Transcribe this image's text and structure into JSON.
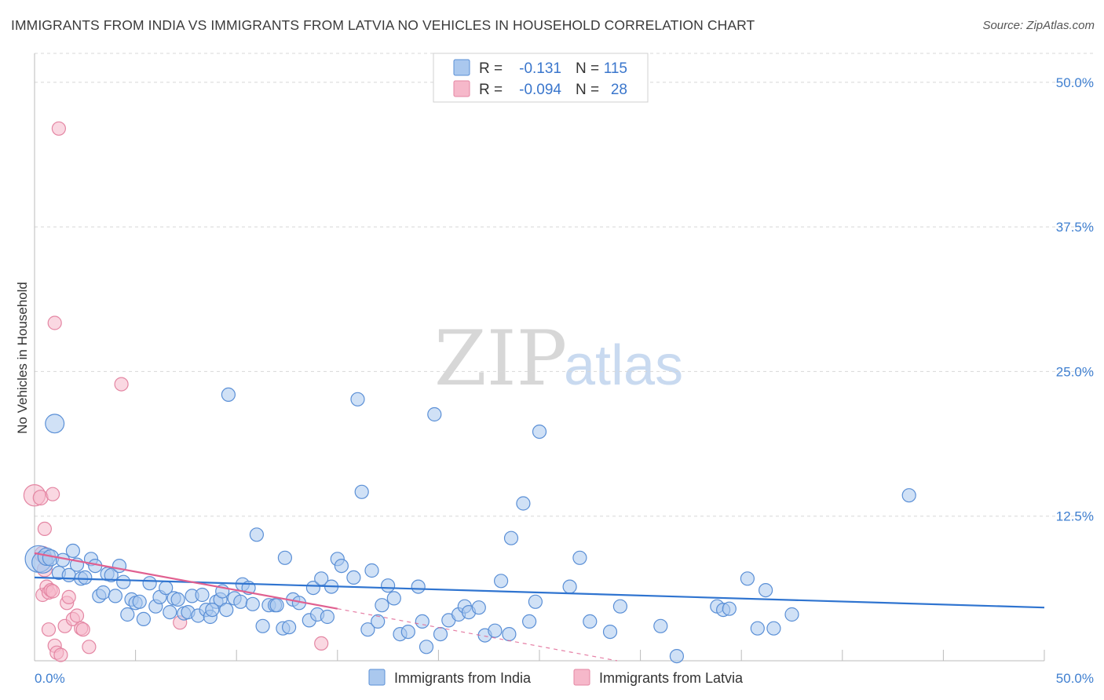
{
  "header": {
    "title": "IMMIGRANTS FROM INDIA VS IMMIGRANTS FROM LATVIA NO VEHICLES IN HOUSEHOLD CORRELATION CHART",
    "source": "Source: ZipAtlas.com"
  },
  "watermark": {
    "zip": "ZIP",
    "atlas": "atlas"
  },
  "legend": {
    "india": {
      "r_label": "R =",
      "r_value": "-0.131",
      "n_label": "N =",
      "n_value": "115"
    },
    "latvia": {
      "r_label": "R =",
      "r_value": "-0.094",
      "n_label": "N =",
      "n_value": "28"
    }
  },
  "colors": {
    "india_fill": "#aac8ee",
    "india_stroke": "#5a8fd6",
    "india_line": "#2f74d0",
    "latvia_fill": "#f6b8ca",
    "latvia_stroke": "#e486a3",
    "latvia_line": "#e06090",
    "grid": "#d8d8d8",
    "tick_text": "#3f7fd0"
  },
  "chart_data": {
    "type": "scatter",
    "title": "IMMIGRANTS FROM INDIA VS IMMIGRANTS FROM LATVIA NO VEHICLES IN HOUSEHOLD CORRELATION CHART",
    "xlabel": "",
    "ylabel": "No Vehicles in Household",
    "xlim": [
      0,
      50
    ],
    "ylim": [
      0,
      52.5
    ],
    "x_tick_labels": [
      "0.0%",
      "50.0%"
    ],
    "y_ticks": [
      12.5,
      25.0,
      37.5,
      50.0
    ],
    "y_tick_labels": [
      "12.5%",
      "25.0%",
      "37.5%",
      "50.0%"
    ],
    "legend_position": "bottom",
    "series": [
      {
        "name": "Immigrants from India",
        "R": -0.131,
        "N": 115,
        "trend": {
          "x": [
            0,
            50
          ],
          "y": [
            7.2,
            4.6
          ]
        },
        "points": [
          [
            0.2,
            8.8,
            2
          ],
          [
            0.4,
            8.5,
            1.6
          ],
          [
            0.6,
            9.0,
            1.3
          ],
          [
            0.8,
            8.9,
            1.2
          ],
          [
            1.0,
            20.5,
            1.4
          ],
          [
            1.2,
            7.6,
            1
          ],
          [
            1.4,
            8.7,
            1
          ],
          [
            1.7,
            7.4,
            1
          ],
          [
            1.9,
            9.5,
            1
          ],
          [
            2.1,
            8.3,
            1
          ],
          [
            2.3,
            7.1,
            1
          ],
          [
            2.5,
            7.2,
            1
          ],
          [
            2.8,
            8.8,
            1
          ],
          [
            3.0,
            8.2,
            1
          ],
          [
            3.2,
            5.6,
            1
          ],
          [
            3.4,
            5.9,
            1
          ],
          [
            3.6,
            7.5,
            1
          ],
          [
            3.8,
            7.4,
            1
          ],
          [
            4.0,
            5.6,
            1
          ],
          [
            4.2,
            8.2,
            1
          ],
          [
            4.4,
            6.8,
            1
          ],
          [
            4.6,
            4.0,
            1
          ],
          [
            4.8,
            5.3,
            1
          ],
          [
            5.0,
            5.0,
            1
          ],
          [
            5.2,
            5.1,
            1
          ],
          [
            5.4,
            3.6,
            1
          ],
          [
            5.7,
            6.7,
            1
          ],
          [
            6.0,
            4.7,
            1
          ],
          [
            6.2,
            5.5,
            1
          ],
          [
            6.5,
            6.3,
            1
          ],
          [
            6.7,
            4.2,
            1
          ],
          [
            6.9,
            5.4,
            1
          ],
          [
            7.1,
            5.3,
            1
          ],
          [
            7.4,
            4.1,
            1
          ],
          [
            7.6,
            4.2,
            1
          ],
          [
            7.8,
            5.6,
            1
          ],
          [
            8.1,
            3.9,
            1
          ],
          [
            8.3,
            5.7,
            1
          ],
          [
            8.5,
            4.4,
            1
          ],
          [
            8.7,
            3.8,
            1
          ],
          [
            9.0,
            5.1,
            1
          ],
          [
            9.2,
            5.3,
            1
          ],
          [
            9.5,
            4.4,
            1
          ],
          [
            9.6,
            23.0,
            1
          ],
          [
            9.9,
            5.4,
            1
          ],
          [
            10.2,
            5.1,
            1
          ],
          [
            10.3,
            6.6,
            1
          ],
          [
            10.6,
            6.3,
            1
          ],
          [
            10.8,
            4.9,
            1
          ],
          [
            11.0,
            10.9,
            1
          ],
          [
            11.3,
            3.0,
            1
          ],
          [
            11.6,
            4.8,
            1
          ],
          [
            11.9,
            4.8,
            1
          ],
          [
            12.3,
            2.8,
            1
          ],
          [
            12.4,
            8.9,
            1
          ],
          [
            12.6,
            2.9,
            1
          ],
          [
            12.8,
            5.3,
            1
          ],
          [
            13.1,
            5.0,
            1
          ],
          [
            13.6,
            3.5,
            1
          ],
          [
            13.8,
            6.3,
            1
          ],
          [
            14.0,
            4.0,
            1
          ],
          [
            14.2,
            7.1,
            1
          ],
          [
            14.5,
            3.8,
            1
          ],
          [
            14.7,
            6.4,
            1
          ],
          [
            15.0,
            8.8,
            1
          ],
          [
            15.2,
            8.2,
            1
          ],
          [
            15.8,
            7.2,
            1
          ],
          [
            16.0,
            22.6,
            1
          ],
          [
            16.2,
            14.6,
            1
          ],
          [
            16.5,
            2.7,
            1
          ],
          [
            16.7,
            7.8,
            1
          ],
          [
            17.2,
            4.8,
            1
          ],
          [
            17.5,
            6.5,
            1
          ],
          [
            17.8,
            5.4,
            1
          ],
          [
            18.1,
            2.3,
            1
          ],
          [
            18.5,
            2.5,
            1
          ],
          [
            19.0,
            6.4,
            1
          ],
          [
            19.2,
            3.4,
            1
          ],
          [
            19.4,
            1.2,
            1
          ],
          [
            19.8,
            21.3,
            1
          ],
          [
            20.1,
            2.3,
            1
          ],
          [
            20.5,
            3.5,
            1
          ],
          [
            21.0,
            4.0,
            1
          ],
          [
            21.3,
            4.7,
            1
          ],
          [
            21.5,
            4.2,
            1
          ],
          [
            22.0,
            4.6,
            1
          ],
          [
            22.3,
            2.2,
            1
          ],
          [
            22.8,
            2.6,
            1
          ],
          [
            23.1,
            6.9,
            1
          ],
          [
            23.5,
            2.3,
            1
          ],
          [
            24.2,
            13.6,
            1
          ],
          [
            24.5,
            3.4,
            1
          ],
          [
            24.8,
            5.1,
            1
          ],
          [
            25.0,
            19.8,
            1
          ],
          [
            26.5,
            6.4,
            1
          ],
          [
            27.0,
            8.9,
            1
          ],
          [
            27.5,
            3.4,
            1
          ],
          [
            28.5,
            2.5,
            1
          ],
          [
            29.0,
            4.7,
            1
          ],
          [
            31.0,
            3.0,
            1
          ],
          [
            31.8,
            0.4,
            1
          ],
          [
            33.8,
            4.7,
            1
          ],
          [
            34.1,
            4.4,
            1
          ],
          [
            34.4,
            4.5,
            1
          ],
          [
            35.3,
            7.1,
            1
          ],
          [
            35.8,
            2.8,
            1
          ],
          [
            36.2,
            6.1,
            1
          ],
          [
            36.6,
            2.8,
            1
          ],
          [
            37.5,
            4.0,
            1
          ],
          [
            43.3,
            14.3,
            1
          ],
          [
            23.6,
            10.6,
            1
          ],
          [
            8.8,
            4.4,
            1
          ],
          [
            12.0,
            4.8,
            1
          ],
          [
            17.0,
            3.4,
            1
          ],
          [
            9.3,
            6.0,
            1
          ]
        ]
      },
      {
        "name": "Immigrants from Latvia",
        "R": -0.094,
        "N": 28,
        "trend": {
          "x": [
            0,
            15
          ],
          "y": [
            9.3,
            4.5
          ]
        },
        "trend_extension": {
          "x": [
            15,
            35
          ],
          "y": [
            4.5,
            -2.0
          ]
        },
        "points": [
          [
            0.0,
            14.3,
            1.6
          ],
          [
            0.3,
            14.1,
            1.1
          ],
          [
            0.5,
            11.4,
            1
          ],
          [
            0.4,
            9.2,
            1.2
          ],
          [
            0.5,
            7.9,
            1.1
          ],
          [
            0.4,
            5.7,
            1
          ],
          [
            0.6,
            6.4,
            1
          ],
          [
            0.7,
            5.9,
            1
          ],
          [
            0.8,
            6.1,
            1
          ],
          [
            0.7,
            2.7,
            1
          ],
          [
            0.9,
            6.0,
            1
          ],
          [
            1.0,
            1.3,
            1
          ],
          [
            1.1,
            0.7,
            1
          ],
          [
            1.3,
            0.5,
            1
          ],
          [
            0.9,
            14.4,
            1
          ],
          [
            1.0,
            29.2,
            1
          ],
          [
            1.2,
            46.0,
            1
          ],
          [
            1.5,
            3.0,
            1
          ],
          [
            1.6,
            5.0,
            1
          ],
          [
            1.7,
            5.5,
            1
          ],
          [
            1.9,
            3.6,
            1
          ],
          [
            2.1,
            3.9,
            1
          ],
          [
            2.3,
            2.8,
            1
          ],
          [
            2.7,
            1.2,
            1
          ],
          [
            4.3,
            23.9,
            1
          ],
          [
            7.2,
            3.3,
            1
          ],
          [
            14.2,
            1.5,
            1
          ],
          [
            2.4,
            2.7,
            1
          ]
        ]
      }
    ]
  },
  "bottom_legend": {
    "india_label": "Immigrants from India",
    "latvia_label": "Immigrants from Latvia"
  }
}
